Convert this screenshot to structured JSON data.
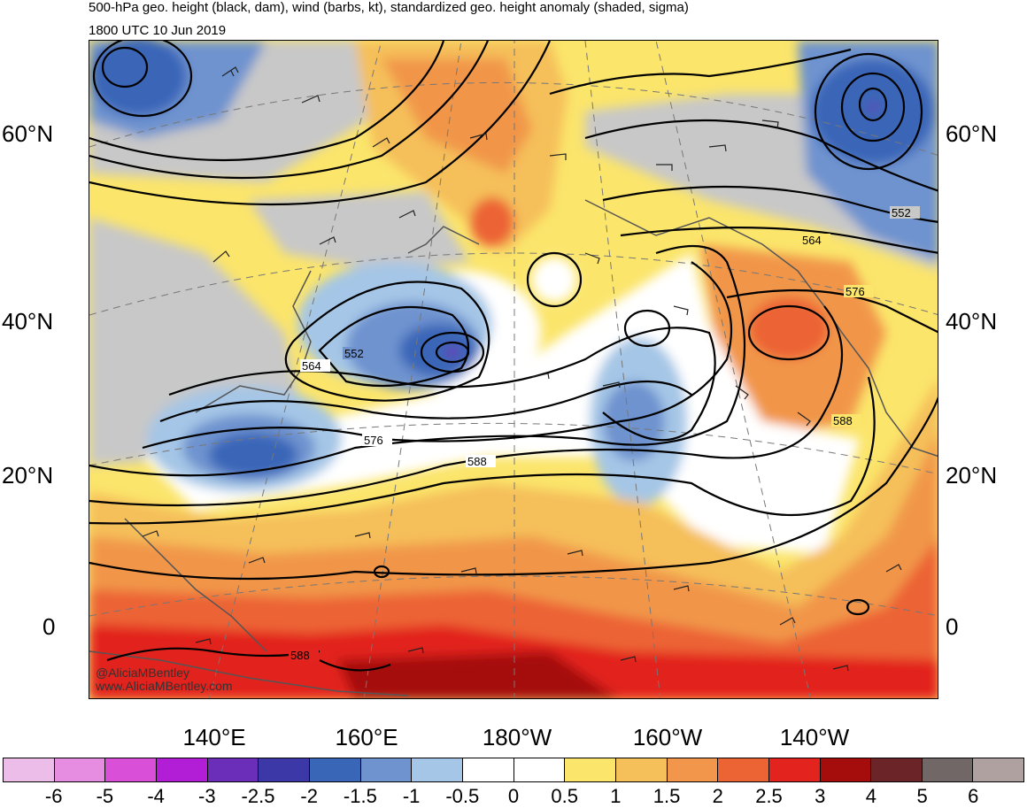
{
  "title": "500-hPa geo. height (black, dam), wind (barbs, kt), standardized geo. height anomaly (shaded, sigma)",
  "valid_time": "1800 UTC 10 Jun 2019",
  "latitude_labels": [
    "60°N",
    "40°N",
    "20°N",
    "0"
  ],
  "longitude_labels": [
    "140°E",
    "160°E",
    "180°W",
    "160°W",
    "140°W"
  ],
  "contour_labels": [
    "552",
    "564",
    "576",
    "588",
    "552",
    "564",
    "576",
    "588",
    "588"
  ],
  "credits": {
    "handle": "@AliciaMBentley",
    "website": "www.AliciaMBentley.com"
  },
  "colorbar": {
    "labels": [
      "-6",
      "-5",
      "-4",
      "-3",
      "-2.5",
      "-2",
      "-1.5",
      "-1",
      "-0.5",
      "0",
      "0.5",
      "1",
      "1.5",
      "2",
      "2.5",
      "3",
      "4",
      "5",
      "6"
    ],
    "colors": [
      "#ecbde8",
      "#e68de2",
      "#da4fd8",
      "#b21ed6",
      "#6a2eb8",
      "#3c38a8",
      "#3a66b8",
      "#6e93cf",
      "#a5c6e6",
      "#ffffff",
      "#ffffff",
      "#fbe56b",
      "#f5bf5a",
      "#f1964a",
      "#ec6434",
      "#e2231e",
      "#a50d0d",
      "#6b2528",
      "#716766",
      "#aea19f"
    ]
  }
}
